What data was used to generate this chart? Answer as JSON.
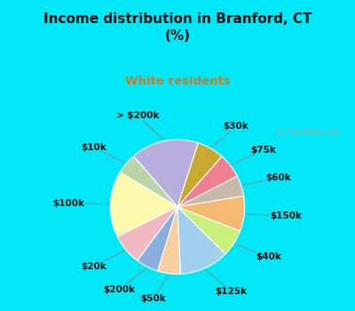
{
  "title": "Income distribution in Branford, CT\n(%)",
  "subtitle": "White residents",
  "title_color": "#111111",
  "subtitle_color": "#c87a2a",
  "background_cyan": "#00e8f8",
  "background_chart": "#d0eedc",
  "watermark": "ⓘ City-Data.com",
  "labels": [
    "> $200k",
    "$10k",
    "$100k",
    "$20k",
    "$200k",
    "$50k",
    "$125k",
    "$40k",
    "$150k",
    "$60k",
    "$75k",
    "$30k"
  ],
  "values": [
    16.5,
    5.0,
    16.0,
    7.5,
    5.5,
    5.5,
    12.0,
    6.5,
    8.5,
    5.0,
    6.0,
    6.5
  ],
  "colors": [
    "#b8aedd",
    "#b8d4a8",
    "#fafaaa",
    "#f0b8c0",
    "#8aaedd",
    "#f5cfa0",
    "#a0d0ee",
    "#c8f07a",
    "#f5b870",
    "#c8b8a8",
    "#f08090",
    "#c8a830"
  ],
  "startangle": 72,
  "label_fontsize": 7.5,
  "label_color": "#111111",
  "title_fontsize": 11,
  "subtitle_fontsize": 9.5
}
